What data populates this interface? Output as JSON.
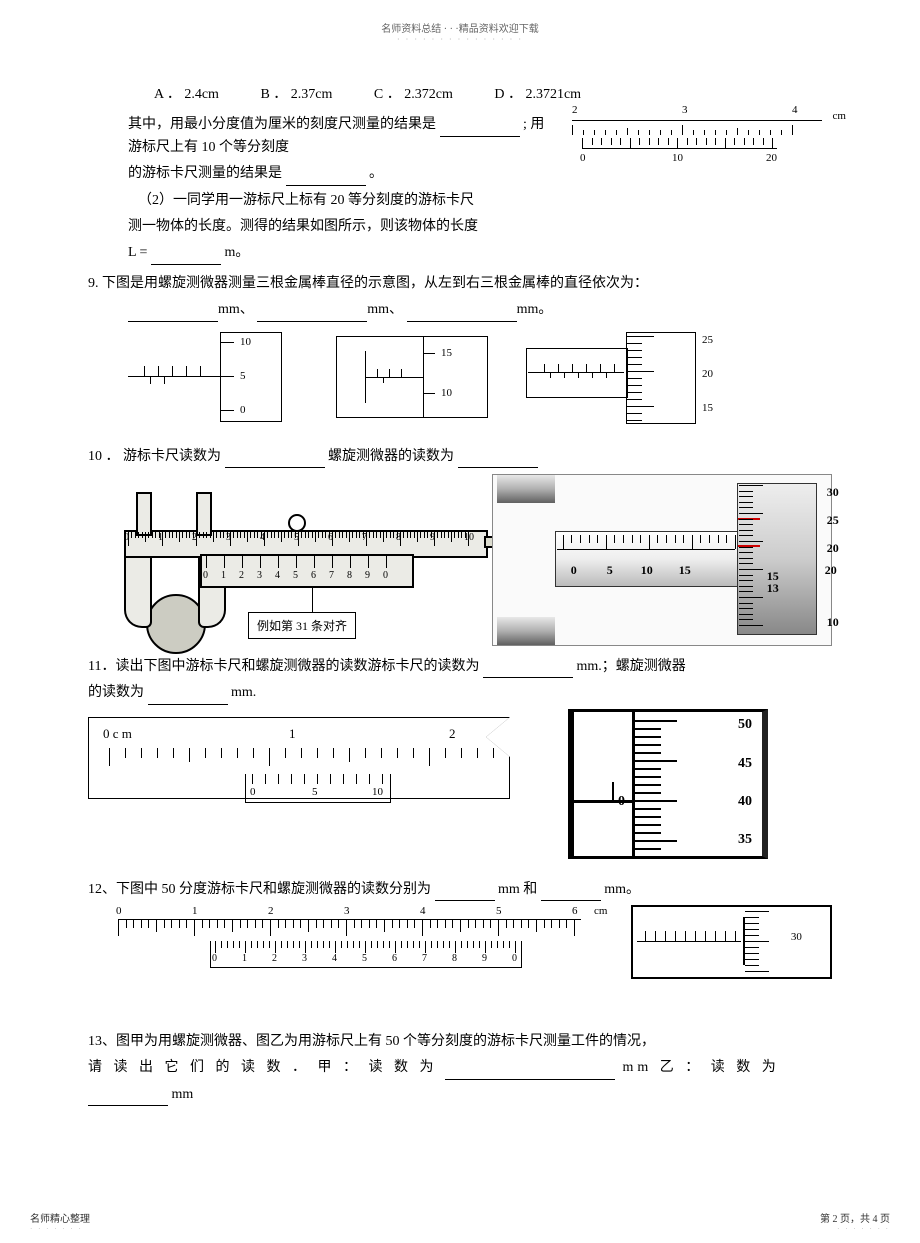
{
  "header": {
    "top": "名师资料总结 · · ·精品资料欢迎下载",
    "sub": "· · · · · · · · · · · · · · ·"
  },
  "q8": {
    "choices": {
      "A": "A ．  2.4cm",
      "B": "B ．  2.37cm",
      "C": "C ．  2.372cm",
      "D": "D ．  2.3721cm"
    },
    "line1a": "其中，用最小分度值为厘米的刻度尺测量的结果是    ",
    "line1b": "; 用游标尺上有   10 个等分刻度",
    "line2a": "的游标卡尺测量的结果是    ",
    "line2b": "。",
    "line3": "（2）一同学用一游标尺上标有    20 等分刻度的游标卡尺",
    "line4": "测一物体的长度。测得的结果如图所示，则该物体的长度",
    "line5a": "L = ",
    "line5b": " m。",
    "ruler": {
      "nums": [
        "2",
        "3",
        "4"
      ],
      "unit": "cm",
      "vnums": [
        "0",
        "10",
        "20"
      ]
    }
  },
  "q9": {
    "title": "9. 下图是用螺旋测微器测量三根金属棒直径的示意图，从左到右三根金属棒的直径依次为：",
    "blanks": {
      "b1": "mm、",
      "b2": "mm、",
      "b3": "mm。"
    },
    "m1": {
      "thimble": [
        "10",
        "5",
        "0"
      ]
    },
    "m2": {
      "thimble": [
        "15",
        "10"
      ]
    },
    "m3": {
      "thimble": [
        "25",
        "20",
        "15"
      ]
    }
  },
  "q10": {
    "title_a": "10 ．  游标卡尺读数为 ",
    "title_b": "    螺旋测微器的读数为 ",
    "main_scale": [
      "0",
      "1",
      "2",
      "3",
      "4",
      "5",
      "6",
      "7",
      "8",
      "9",
      "10"
    ],
    "vernier_scale": [
      "0",
      "1",
      "2",
      "3",
      "4",
      "5",
      "6",
      "7",
      "8",
      "9",
      "0"
    ],
    "callout": "例如第   31 条对齐",
    "mic": {
      "sleeve": [
        "0",
        "5",
        "10",
        "15",
        "20"
      ],
      "thimble": [
        "30",
        "25",
        "20",
        "15",
        "13",
        "10"
      ]
    }
  },
  "q11": {
    "title_a": "11．读出下图中游标卡尺和螺旋测微器的读数游标卡尺的读数为    ",
    "title_b": "mm.；螺旋测微器",
    "line2a": "的读数为 ",
    "line2b": "mm.",
    "main": [
      "0 c m",
      "1",
      "2"
    ],
    "vernier": [
      "0",
      "5",
      "10"
    ],
    "mic": [
      "50",
      "45",
      "40",
      "35"
    ],
    "mic0": "0"
  },
  "q12": {
    "title_a": "12、下图中   50 分度游标卡尺和螺旋测微器的读数分别为    ",
    "title_b": "mm 和",
    "title_c": "mm。",
    "main": [
      "0",
      "1",
      "2",
      "3",
      "4",
      "5",
      "6"
    ],
    "unit": "cm",
    "vernier": [
      "0",
      "1",
      "2",
      "3",
      "4",
      "5",
      "6",
      "7",
      "8",
      "9",
      "0"
    ],
    "mic": [
      "30"
    ]
  },
  "q13": {
    "l1": "13、图甲为用螺旋测微器、图乙为用游标尺上有    50 个等分刻度的游标卡尺测量工件的情况，",
    "l2a": "请 读 出 它 们 的 读 数 ． 甲 ： 读 数 为 ",
    "l2b": "mm       乙 ： 读 数 为",
    "l3": "mm"
  },
  "footer": {
    "left": "名师精心整理",
    "leftsub": "· · · · · · ·",
    "right": "第 2 页，共 4 页",
    "rightsub": "· · · · · · ·"
  }
}
